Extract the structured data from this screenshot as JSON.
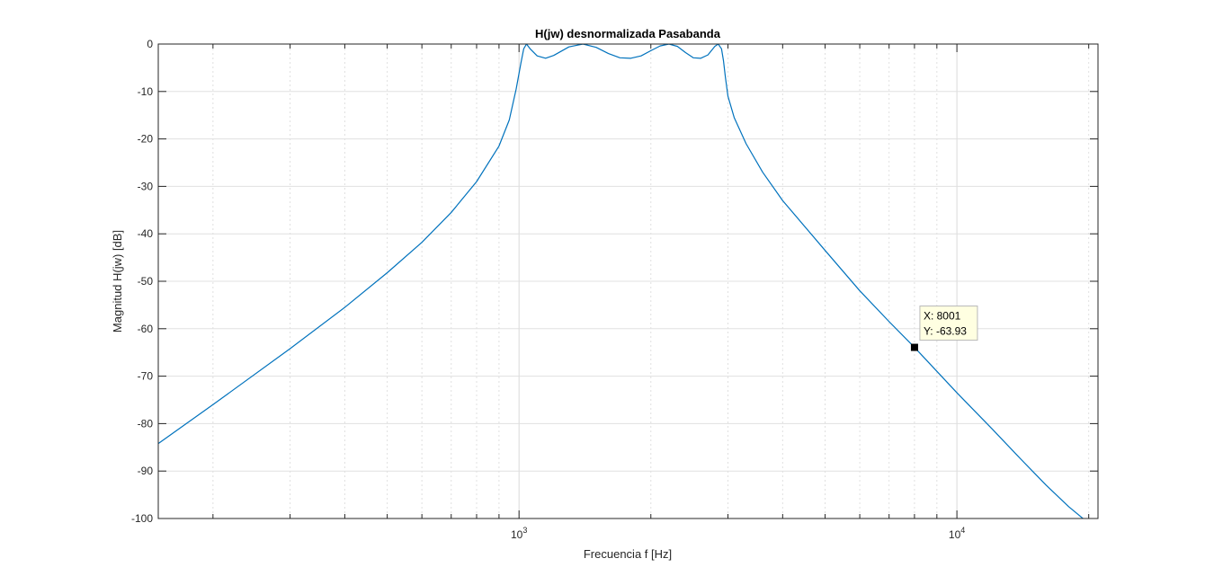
{
  "chart_data": {
    "type": "line",
    "title": "H(jw) desnormalizada Pasabanda",
    "xlabel": "Frecuencia f [Hz]",
    "ylabel": "Magnitud H(jw) [dB]",
    "xscale": "log",
    "xlim": [
      150,
      21000
    ],
    "ylim": [
      -100,
      0
    ],
    "grid": true,
    "x_ticks": [
      {
        "value": 1000,
        "base": "10",
        "exp": "3"
      },
      {
        "value": 10000,
        "base": "10",
        "exp": "4"
      }
    ],
    "y_ticks": [
      {
        "value": 0,
        "label": "0"
      },
      {
        "value": -10,
        "label": "-10"
      },
      {
        "value": -20,
        "label": "-20"
      },
      {
        "value": -30,
        "label": "-30"
      },
      {
        "value": -40,
        "label": "-40"
      },
      {
        "value": -50,
        "label": "-50"
      },
      {
        "value": -60,
        "label": "-60"
      },
      {
        "value": -70,
        "label": "-70"
      },
      {
        "value": -80,
        "label": "-80"
      },
      {
        "value": -90,
        "label": "-90"
      },
      {
        "value": -100,
        "label": "-100"
      }
    ],
    "series": [
      {
        "color": "#0072BD",
        "x": [
          150,
          200,
          300,
          400,
          500,
          600,
          700,
          800,
          900,
          950,
          985,
          1010,
          1025,
          1040,
          1060,
          1100,
          1150,
          1200,
          1300,
          1400,
          1500,
          1600,
          1700,
          1800,
          1900,
          2000,
          2100,
          2200,
          2300,
          2400,
          2500,
          2600,
          2700,
          2800,
          2850,
          2900,
          2930,
          2960,
          3000,
          3100,
          3300,
          3600,
          4000,
          5000,
          6000,
          7000,
          8001,
          10000,
          12000,
          14000,
          16000,
          18000,
          20000,
          21000
        ],
        "y": [
          -84.2,
          -76.0,
          -64.2,
          -55.5,
          -48.2,
          -41.8,
          -35.5,
          -29.0,
          -21.5,
          -16.0,
          -9.5,
          -4.0,
          -1.0,
          0,
          -1.0,
          -2.5,
          -3.0,
          -2.4,
          -0.6,
          0,
          -0.7,
          -2.0,
          -2.9,
          -3.0,
          -2.5,
          -1.4,
          -0.4,
          0,
          -0.5,
          -1.8,
          -2.9,
          -3.0,
          -2.3,
          -0.5,
          0,
          -1.0,
          -3.5,
          -7.0,
          -11.0,
          -15.5,
          -21.0,
          -27.0,
          -33.0,
          -43.5,
          -52.0,
          -58.5,
          -63.93,
          -73.5,
          -81.0,
          -87.5,
          -93.0,
          -97.5,
          -101.0,
          -103.0
        ]
      }
    ],
    "datatip": {
      "x": 8001,
      "y": -63.93,
      "x_text": "X: 8001",
      "y_text": "Y: -63.93"
    }
  }
}
